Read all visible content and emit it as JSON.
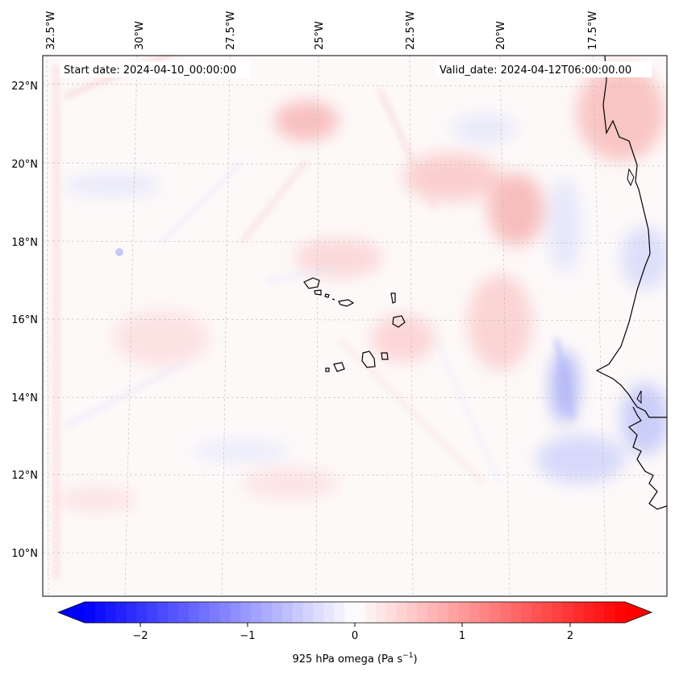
{
  "map": {
    "start_date": "Start date: 2024-04-10_00:00:00",
    "valid_date": "Valid_date: 2024-04-12T06:00:00.00",
    "lon_labels": [
      "32.5°W",
      "30°W",
      "27.5°W",
      "25°W",
      "22.5°W",
      "20°W",
      "17.5°W"
    ],
    "lat_labels": [
      "22°N",
      "20°N",
      "18°N",
      "16°N",
      "14°N",
      "12°N",
      "10°N"
    ],
    "colorbar": {
      "ticks": [
        "−2",
        "−1",
        "0",
        "1",
        "2"
      ],
      "label_main": "925 hPa omega (Pa s",
      "label_sup": "−1",
      "label_end": ")",
      "min": -2.6,
      "max": 2.6,
      "low_color": "#0000ff",
      "mid_color": "#ffffff",
      "high_color": "#ff0000"
    }
  }
}
